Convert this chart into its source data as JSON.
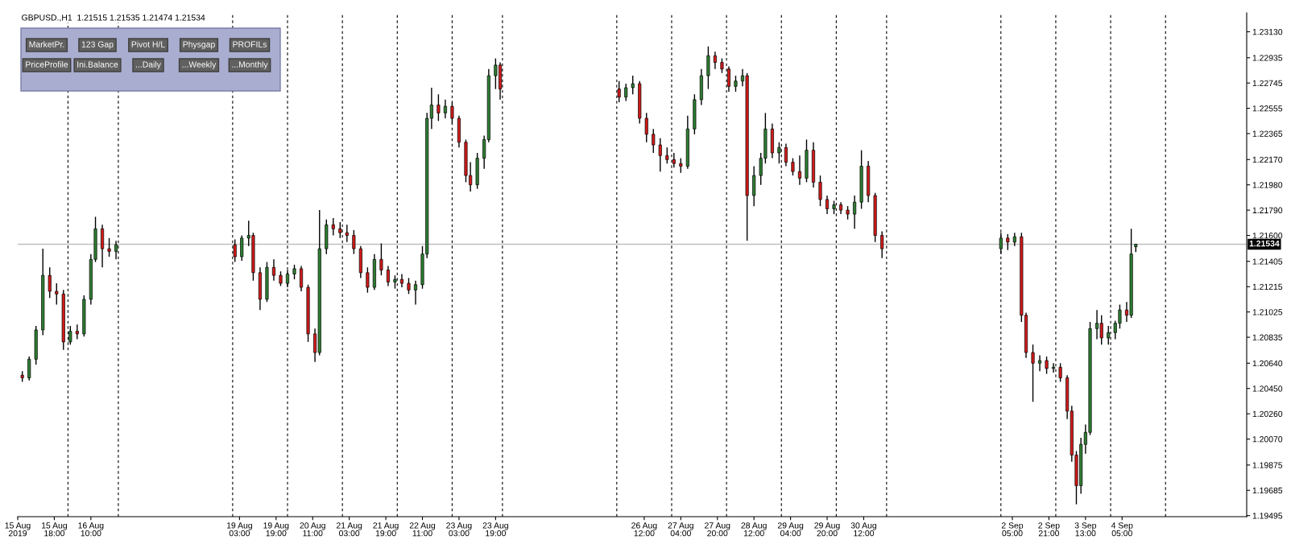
{
  "chart_data": {
    "type": "candlestick",
    "title": "GBPUSD.,H1  1.21515 1.21535 1.21474 1.21534",
    "annotations": [
      "MarketPr.",
      "123 Gap",
      "Pivot H/L",
      "Physgap",
      "PROFILs",
      "PriceProfile",
      "Ini.Balance",
      "...Daily",
      "...Weekly",
      "...Monthly"
    ],
    "x": [
      "2019-08-15T04:00",
      "2019-08-15T07:00",
      "2019-08-15T10:00",
      "2019-08-15T13:00",
      "2019-08-15T16:00",
      "2019-08-15T19:00",
      "2019-08-15T22:00",
      "2019-08-16T01:00",
      "2019-08-16T04:00",
      "2019-08-16T07:00",
      "2019-08-16T10:00",
      "2019-08-16T12:00",
      "2019-08-16T15:00",
      "2019-08-16T18:00",
      "2019-08-16T21:00",
      "2019-08-19T01:00",
      "2019-08-19T04:00",
      "2019-08-19T07:00",
      "2019-08-19T09:00",
      "2019-08-19T12:00",
      "2019-08-19T15:00",
      "2019-08-19T18:00",
      "2019-08-19T21:00",
      "2019-08-20T00:00",
      "2019-08-20T03:00",
      "2019-08-20T06:00",
      "2019-08-20T09:00",
      "2019-08-20T12:00",
      "2019-08-20T14:00",
      "2019-08-20T17:00",
      "2019-08-20T20:00",
      "2019-08-20T23:00",
      "2019-08-21T02:00",
      "2019-08-21T05:00",
      "2019-08-21T08:00",
      "2019-08-21T11:00",
      "2019-08-21T14:00",
      "2019-08-21T17:00",
      "2019-08-21T20:00",
      "2019-08-21T23:00",
      "2019-08-22T02:00",
      "2019-08-22T05:00",
      "2019-08-22T08:00",
      "2019-08-22T11:00",
      "2019-08-22T13:00",
      "2019-08-22T15:00",
      "2019-08-22T18:00",
      "2019-08-22T21:00",
      "2019-08-23T00:00",
      "2019-08-23T03:00",
      "2019-08-23T06:00",
      "2019-08-23T08:00",
      "2019-08-23T11:00",
      "2019-08-23T14:00",
      "2019-08-23T16:00",
      "2019-08-23T19:00",
      "2019-08-23T21:00",
      "2019-08-26T01:00",
      "2019-08-26T04:00",
      "2019-08-26T07:00",
      "2019-08-26T10:00",
      "2019-08-26T13:00",
      "2019-08-26T16:00",
      "2019-08-26T19:00",
      "2019-08-26T22:00",
      "2019-08-27T01:00",
      "2019-08-27T04:00",
      "2019-08-27T07:00",
      "2019-08-27T10:00",
      "2019-08-27T13:00",
      "2019-08-27T16:00",
      "2019-08-27T19:00",
      "2019-08-27T22:00",
      "2019-08-28T01:00",
      "2019-08-28T04:00",
      "2019-08-28T07:00",
      "2019-08-28T09:00",
      "2019-08-28T12:00",
      "2019-08-28T15:00",
      "2019-08-28T17:00",
      "2019-08-28T20:00",
      "2019-08-28T23:00",
      "2019-08-29T02:00",
      "2019-08-29T05:00",
      "2019-08-29T08:00",
      "2019-08-29T11:00",
      "2019-08-29T14:00",
      "2019-08-29T17:00",
      "2019-08-29T20:00",
      "2019-08-29T23:00",
      "2019-08-30T02:00",
      "2019-08-30T05:00",
      "2019-08-30T08:00",
      "2019-08-30T11:00",
      "2019-08-30T14:00",
      "2019-08-30T17:00",
      "2019-08-30T20:00",
      "2019-09-02T00:00",
      "2019-09-02T03:00",
      "2019-09-02T06:00",
      "2019-09-02T09:00",
      "2019-09-02T11:00",
      "2019-09-02T14:00",
      "2019-09-02T17:00",
      "2019-09-02T20:00",
      "2019-09-02T23:00",
      "2019-09-03T02:00",
      "2019-09-03T05:00",
      "2019-09-03T07:00",
      "2019-09-03T09:00",
      "2019-09-03T11:00",
      "2019-09-03T13:00",
      "2019-09-03T15:00",
      "2019-09-03T18:00",
      "2019-09-03T20:00",
      "2019-09-03T23:00",
      "2019-09-04T02:00",
      "2019-09-04T04:00",
      "2019-09-04T07:00",
      "2019-09-04T09:00",
      "2019-09-04T11:00"
    ],
    "ohlc": [
      [
        1.2055,
        1.2058,
        1.205,
        1.2053
      ],
      [
        1.2053,
        1.2069,
        1.2051,
        1.2067
      ],
      [
        1.2067,
        1.2092,
        1.2063,
        1.2089
      ],
      [
        1.2089,
        1.215,
        1.2085,
        1.213
      ],
      [
        1.213,
        1.2136,
        1.2113,
        1.2118
      ],
      [
        1.2118,
        1.2124,
        1.2108,
        1.2116
      ],
      [
        1.2116,
        1.2119,
        1.2074,
        1.208
      ],
      [
        1.208,
        1.2092,
        1.2078,
        1.2088
      ],
      [
        1.2088,
        1.2093,
        1.2082,
        1.2086
      ],
      [
        1.2086,
        1.2115,
        1.2084,
        1.2112
      ],
      [
        1.2112,
        1.2146,
        1.2108,
        1.2142
      ],
      [
        1.2142,
        1.2174,
        1.214,
        1.2165
      ],
      [
        1.2165,
        1.2168,
        1.2136,
        1.215
      ],
      [
        1.215,
        1.2158,
        1.2144,
        1.2148
      ],
      [
        1.2148,
        1.2156,
        1.2142,
        1.2153
      ],
      [
        1.2153,
        1.2157,
        1.214,
        1.2144
      ],
      [
        1.2144,
        1.216,
        1.2141,
        1.2158
      ],
      [
        1.2158,
        1.2171,
        1.2152,
        1.216
      ],
      [
        1.216,
        1.2162,
        1.2126,
        1.2132
      ],
      [
        1.2132,
        1.2136,
        1.2104,
        1.2112
      ],
      [
        1.2112,
        1.214,
        1.211,
        1.2136
      ],
      [
        1.2136,
        1.2142,
        1.2126,
        1.213
      ],
      [
        1.213,
        1.2133,
        1.2122,
        1.2124
      ],
      [
        1.2124,
        1.2134,
        1.2121,
        1.2131
      ],
      [
        1.2131,
        1.2138,
        1.2127,
        1.2135
      ],
      [
        1.2135,
        1.2137,
        1.2118,
        1.2121
      ],
      [
        1.2121,
        1.2123,
        1.208,
        1.2086
      ],
      [
        1.2086,
        1.209,
        1.2065,
        1.2072
      ],
      [
        1.2072,
        1.2179,
        1.207,
        1.215
      ],
      [
        1.215,
        1.2172,
        1.2146,
        1.2168
      ],
      [
        1.2168,
        1.2173,
        1.216,
        1.2165
      ],
      [
        1.2165,
        1.217,
        1.2158,
        1.2162
      ],
      [
        1.2162,
        1.2168,
        1.2155,
        1.216
      ],
      [
        1.216,
        1.2164,
        1.2146,
        1.215
      ],
      [
        1.215,
        1.2152,
        1.2128,
        1.2132
      ],
      [
        1.2132,
        1.2136,
        1.2117,
        1.2121
      ],
      [
        1.2121,
        1.2146,
        1.2119,
        1.2142
      ],
      [
        1.2142,
        1.2154,
        1.213,
        1.2134
      ],
      [
        1.2134,
        1.2137,
        1.2122,
        1.2125
      ],
      [
        1.2125,
        1.213,
        1.212,
        1.2127
      ],
      [
        1.2127,
        1.2131,
        1.2121,
        1.2124
      ],
      [
        1.2124,
        1.2128,
        1.2116,
        1.2119
      ],
      [
        1.2119,
        1.2126,
        1.2108,
        1.2123
      ],
      [
        1.2123,
        1.2152,
        1.212,
        1.2146
      ],
      [
        1.2146,
        1.2252,
        1.2143,
        1.2248
      ],
      [
        1.2248,
        1.2271,
        1.224,
        1.2258
      ],
      [
        1.2258,
        1.2266,
        1.2246,
        1.2252
      ],
      [
        1.2252,
        1.2262,
        1.2248,
        1.2257
      ],
      [
        1.2257,
        1.226,
        1.2244,
        1.2248
      ],
      [
        1.2248,
        1.225,
        1.2226,
        1.223
      ],
      [
        1.223,
        1.2232,
        1.22,
        1.2205
      ],
      [
        1.2205,
        1.2215,
        1.2193,
        1.2198
      ],
      [
        1.2198,
        1.2222,
        1.2195,
        1.2218
      ],
      [
        1.2218,
        1.2235,
        1.221,
        1.2232
      ],
      [
        1.2232,
        1.2285,
        1.223,
        1.228
      ],
      [
        1.228,
        1.2293,
        1.227,
        1.2288
      ],
      [
        1.2288,
        1.229,
        1.2262,
        1.227
      ],
      [
        1.227,
        1.2276,
        1.226,
        1.2264
      ],
      [
        1.2264,
        1.2274,
        1.2261,
        1.2271
      ],
      [
        1.2271,
        1.228,
        1.2266,
        1.2274
      ],
      [
        1.2274,
        1.2276,
        1.2244,
        1.2248
      ],
      [
        1.2248,
        1.2252,
        1.223,
        1.2236
      ],
      [
        1.2236,
        1.224,
        1.2222,
        1.2228
      ],
      [
        1.2228,
        1.2233,
        1.2208,
        1.222
      ],
      [
        1.222,
        1.2226,
        1.2214,
        1.2217
      ],
      [
        1.2217,
        1.2222,
        1.2211,
        1.2214
      ],
      [
        1.2214,
        1.2218,
        1.2207,
        1.2212
      ],
      [
        1.2212,
        1.225,
        1.221,
        1.224
      ],
      [
        1.224,
        1.2266,
        1.2236,
        1.2262
      ],
      [
        1.2262,
        1.2285,
        1.2258,
        1.228
      ],
      [
        1.228,
        1.2302,
        1.227,
        1.2295
      ],
      [
        1.2295,
        1.2298,
        1.2285,
        1.229
      ],
      [
        1.229,
        1.2293,
        1.2282,
        1.2285
      ],
      [
        1.2285,
        1.2287,
        1.2268,
        1.2272
      ],
      [
        1.2272,
        1.228,
        1.2268,
        1.2276
      ],
      [
        1.2276,
        1.2285,
        1.2272,
        1.228
      ],
      [
        1.228,
        1.2282,
        1.2156,
        1.219
      ],
      [
        1.219,
        1.2212,
        1.2182,
        1.2205
      ],
      [
        1.2205,
        1.2222,
        1.2198,
        1.2218
      ],
      [
        1.2218,
        1.2252,
        1.2214,
        1.224
      ],
      [
        1.224,
        1.2244,
        1.2218,
        1.2222
      ],
      [
        1.2222,
        1.223,
        1.2214,
        1.2226
      ],
      [
        1.2226,
        1.2229,
        1.2212,
        1.2215
      ],
      [
        1.2215,
        1.2218,
        1.2205,
        1.2208
      ],
      [
        1.2208,
        1.222,
        1.2198,
        1.2203
      ],
      [
        1.2203,
        1.2232,
        1.22,
        1.2224
      ],
      [
        1.2224,
        1.223,
        1.2196,
        1.22
      ],
      [
        1.22,
        1.2205,
        1.2182,
        1.2187
      ],
      [
        1.2187,
        1.219,
        1.2176,
        1.218
      ],
      [
        1.218,
        1.2186,
        1.2176,
        1.2183
      ],
      [
        1.2183,
        1.2185,
        1.2176,
        1.2179
      ],
      [
        1.2179,
        1.2182,
        1.2172,
        1.2176
      ],
      [
        1.2176,
        1.219,
        1.2165,
        1.2185
      ],
      [
        1.2185,
        1.2224,
        1.218,
        1.2212
      ],
      [
        1.2212,
        1.2216,
        1.2185,
        1.219
      ],
      [
        1.219,
        1.2192,
        1.2155,
        1.216
      ],
      [
        1.216,
        1.2163,
        1.2143,
        1.215
      ],
      [
        1.215,
        1.2162,
        1.2146,
        1.2158
      ],
      [
        1.2158,
        1.2161,
        1.2149,
        1.2155
      ],
      [
        1.2155,
        1.2162,
        1.2152,
        1.2159
      ],
      [
        1.2159,
        1.2162,
        1.2095,
        1.21
      ],
      [
        1.21,
        1.2102,
        1.2068,
        1.2072
      ],
      [
        1.2072,
        1.2078,
        1.2035,
        1.2064
      ],
      [
        1.2064,
        1.207,
        1.2058,
        1.2066
      ],
      [
        1.2066,
        1.2069,
        1.2056,
        1.206
      ],
      [
        1.206,
        1.2064,
        1.2057,
        1.2061
      ],
      [
        1.2061,
        1.2064,
        1.205,
        1.2053
      ],
      [
        1.2053,
        1.2055,
        1.2022,
        1.2028
      ],
      [
        1.2028,
        1.2032,
        1.199,
        1.1995
      ],
      [
        1.1995,
        1.1998,
        1.1958,
        1.1972
      ],
      [
        1.1972,
        1.2008,
        1.1966,
        1.2003
      ],
      [
        1.2003,
        1.2018,
        1.1996,
        1.2012
      ],
      [
        1.2012,
        1.2095,
        1.201,
        1.209
      ],
      [
        1.209,
        1.2104,
        1.2082,
        1.2094
      ],
      [
        1.2094,
        1.21,
        1.2078,
        1.2083
      ],
      [
        1.2083,
        1.2092,
        1.2078,
        1.2087
      ],
      [
        1.2087,
        1.2096,
        1.2082,
        1.2094
      ],
      [
        1.2094,
        1.2108,
        1.209,
        1.2104
      ],
      [
        1.2104,
        1.211,
        1.2095,
        1.21
      ],
      [
        1.21,
        1.2165,
        1.2098,
        1.2146
      ],
      [
        1.21515,
        1.21535,
        1.21474,
        1.21534
      ]
    ],
    "colors": [
      "#d11a1a",
      "#2e7d32",
      "#2e7d32",
      "#2e7d32",
      "#d11a1a",
      "#d11a1a",
      "#d11a1a",
      "#2e7d32",
      "#d11a1a",
      "#2e7d32",
      "#2e7d32",
      "#2e7d32",
      "#d11a1a",
      "#d11a1a",
      "#2e7d32",
      "#d11a1a",
      "#2e7d32",
      "#2e7d32",
      "#d11a1a",
      "#d11a1a",
      "#2e7d32",
      "#d11a1a",
      "#d11a1a",
      "#2e7d32",
      "#2e7d32",
      "#d11a1a",
      "#d11a1a",
      "#d11a1a",
      "#2e7d32",
      "#2e7d32",
      "#d11a1a",
      "#d11a1a",
      "#d11a1a",
      "#d11a1a",
      "#d11a1a",
      "#d11a1a",
      "#2e7d32",
      "#d11a1a",
      "#d11a1a",
      "#2e7d32",
      "#d11a1a",
      "#d11a1a",
      "#2e7d32",
      "#2e7d32",
      "#2e7d32",
      "#2e7d32",
      "#d11a1a",
      "#2e7d32",
      "#d11a1a",
      "#d11a1a",
      "#d11a1a",
      "#d11a1a",
      "#2e7d32",
      "#2e7d32",
      "#2e7d32",
      "#2e7d32",
      "#d11a1a",
      "#d11a1a",
      "#2e7d32",
      "#2e7d32",
      "#d11a1a",
      "#d11a1a",
      "#d11a1a",
      "#d11a1a",
      "#d11a1a",
      "#d11a1a",
      "#d11a1a",
      "#2e7d32",
      "#2e7d32",
      "#2e7d32",
      "#2e7d32",
      "#d11a1a",
      "#d11a1a",
      "#d11a1a",
      "#2e7d32",
      "#2e7d32",
      "#d11a1a",
      "#2e7d32",
      "#2e7d32",
      "#2e7d32",
      "#d11a1a",
      "#2e7d32",
      "#d11a1a",
      "#d11a1a",
      "#d11a1a",
      "#2e7d32",
      "#d11a1a",
      "#d11a1a",
      "#d11a1a",
      "#2e7d32",
      "#d11a1a",
      "#d11a1a",
      "#2e7d32",
      "#2e7d32",
      "#d11a1a",
      "#d11a1a",
      "#d11a1a",
      "#2e7d32",
      "#d11a1a",
      "#2e7d32",
      "#d11a1a",
      "#d11a1a",
      "#d11a1a",
      "#2e7d32",
      "#d11a1a",
      "#2e7d32",
      "#d11a1a",
      "#d11a1a",
      "#d11a1a",
      "#d11a1a",
      "#2e7d32",
      "#2e7d32",
      "#2e7d32",
      "#2e7d32",
      "#d11a1a",
      "#2e7d32",
      "#2e7d32",
      "#2e7d32",
      "#d11a1a",
      "#2e7d32",
      "#2e7d32"
    ],
    "xlim": [
      "2019-08-15T02:00",
      "2019-09-06T11:30"
    ],
    "ylim": [
      1.19487,
      1.23272
    ],
    "xticks": [
      {
        "value": "2019-08-15T02:00",
        "label": "15 Aug 2019"
      },
      {
        "value": "2019-08-15T18:00",
        "label": "15 Aug 18:00"
      },
      {
        "value": "2019-08-16T10:00",
        "label": "16 Aug 10:00"
      },
      {
        "value": "2019-08-19T03:00",
        "label": "19 Aug 03:00"
      },
      {
        "value": "2019-08-19T19:00",
        "label": "19 Aug 19:00"
      },
      {
        "value": "2019-08-20T11:00",
        "label": "20 Aug 11:00"
      },
      {
        "value": "2019-08-21T03:00",
        "label": "21 Aug 03:00"
      },
      {
        "value": "2019-08-21T19:00",
        "label": "21 Aug 19:00"
      },
      {
        "value": "2019-08-22T11:00",
        "label": "22 Aug 11:00"
      },
      {
        "value": "2019-08-23T03:00",
        "label": "23 Aug 03:00"
      },
      {
        "value": "2019-08-23T19:00",
        "label": "23 Aug 19:00"
      },
      {
        "value": "2019-08-26T12:00",
        "label": "26 Aug 12:00"
      },
      {
        "value": "2019-08-27T04:00",
        "label": "27 Aug 04:00"
      },
      {
        "value": "2019-08-27T20:00",
        "label": "27 Aug 20:00"
      },
      {
        "value": "2019-08-28T12:00",
        "label": "28 Aug 12:00"
      },
      {
        "value": "2019-08-29T04:00",
        "label": "29 Aug 04:00"
      },
      {
        "value": "2019-08-29T20:00",
        "label": "29 Aug 20:00"
      },
      {
        "value": "2019-08-30T12:00",
        "label": "30 Aug 12:00"
      },
      {
        "value": "2019-09-02T05:00",
        "label": "2 Sep 05:00"
      },
      {
        "value": "2019-09-02T21:00",
        "label": "2 Sep 21:00"
      },
      {
        "value": "2019-09-03T13:00",
        "label": "3 Sep 13:00"
      },
      {
        "value": "2019-09-04T05:00",
        "label": "4 Sep 05:00"
      }
    ],
    "yticks": [
      {
        "value": 1.19495,
        "label": "1.19495"
      },
      {
        "value": 1.19685,
        "label": "1.19685"
      },
      {
        "value": 1.19875,
        "label": "1.19875"
      },
      {
        "value": 1.2007,
        "label": "1.20070"
      },
      {
        "value": 1.2026,
        "label": "1.20260"
      },
      {
        "value": 1.2045,
        "label": "1.20450"
      },
      {
        "value": 1.2064,
        "label": "1.20640"
      },
      {
        "value": 1.20835,
        "label": "1.20835"
      },
      {
        "value": 1.21025,
        "label": "1.21025"
      },
      {
        "value": 1.21215,
        "label": "1.21215"
      },
      {
        "value": 1.21405,
        "label": "1.21405"
      },
      {
        "value": 1.216,
        "label": "1.21600"
      },
      {
        "value": 1.2179,
        "label": "1.21790"
      },
      {
        "value": 1.2198,
        "label": "1.21980"
      },
      {
        "value": 1.2217,
        "label": "1.22170"
      },
      {
        "value": 1.22365,
        "label": "1.22365"
      },
      {
        "value": 1.22555,
        "label": "1.22555"
      },
      {
        "value": 1.22745,
        "label": "1.22745"
      },
      {
        "value": 1.22935,
        "label": "1.22935"
      },
      {
        "value": 1.2313,
        "label": "1.23130"
      }
    ],
    "ref_lines": [
      {
        "axis": "y",
        "value": 1.21534,
        "label": "1.21534",
        "color": "#c0c0c0",
        "line_style": "solid"
      },
      {
        "axis": "x",
        "value": "2019-08-16T00:00",
        "color": "#000000",
        "line_style": "dashed"
      },
      {
        "axis": "x",
        "value": "2019-08-16T22:00",
        "color": "#000000",
        "line_style": "dashed"
      },
      {
        "axis": "x",
        "value": "2019-08-19T00:00",
        "color": "#000000",
        "line_style": "dashed"
      },
      {
        "axis": "x",
        "value": "2019-08-20T00:00",
        "color": "#000000",
        "line_style": "dashed"
      },
      {
        "axis": "x",
        "value": "2019-08-21T00:00",
        "color": "#000000",
        "line_style": "dashed"
      },
      {
        "axis": "x",
        "value": "2019-08-22T00:00",
        "color": "#000000",
        "line_style": "dashed"
      },
      {
        "axis": "x",
        "value": "2019-08-23T00:00",
        "color": "#000000",
        "line_style": "dashed"
      },
      {
        "axis": "x",
        "value": "2019-08-23T22:00",
        "color": "#000000",
        "line_style": "dashed"
      },
      {
        "axis": "x",
        "value": "2019-08-26T00:00",
        "color": "#000000",
        "line_style": "dashed"
      },
      {
        "axis": "x",
        "value": "2019-08-27T00:00",
        "color": "#000000",
        "line_style": "dashed"
      },
      {
        "axis": "x",
        "value": "2019-08-28T00:00",
        "color": "#000000",
        "line_style": "dashed"
      },
      {
        "axis": "x",
        "value": "2019-08-29T00:00",
        "color": "#000000",
        "line_style": "dashed"
      },
      {
        "axis": "x",
        "value": "2019-08-30T00:00",
        "color": "#000000",
        "line_style": "dashed"
      },
      {
        "axis": "x",
        "value": "2019-08-30T22:00",
        "color": "#000000",
        "line_style": "dashed"
      },
      {
        "axis": "x",
        "value": "2019-09-02T00:00",
        "color": "#000000",
        "line_style": "dashed"
      },
      {
        "axis": "x",
        "value": "2019-09-03T00:00",
        "color": "#000000",
        "line_style": "dashed"
      },
      {
        "axis": "x",
        "value": "2019-09-04T00:00",
        "color": "#000000",
        "line_style": "dashed"
      },
      {
        "axis": "x",
        "value": "2019-09-05T00:00",
        "color": "#000000",
        "line_style": "dashed"
      }
    ],
    "grid": false
  }
}
